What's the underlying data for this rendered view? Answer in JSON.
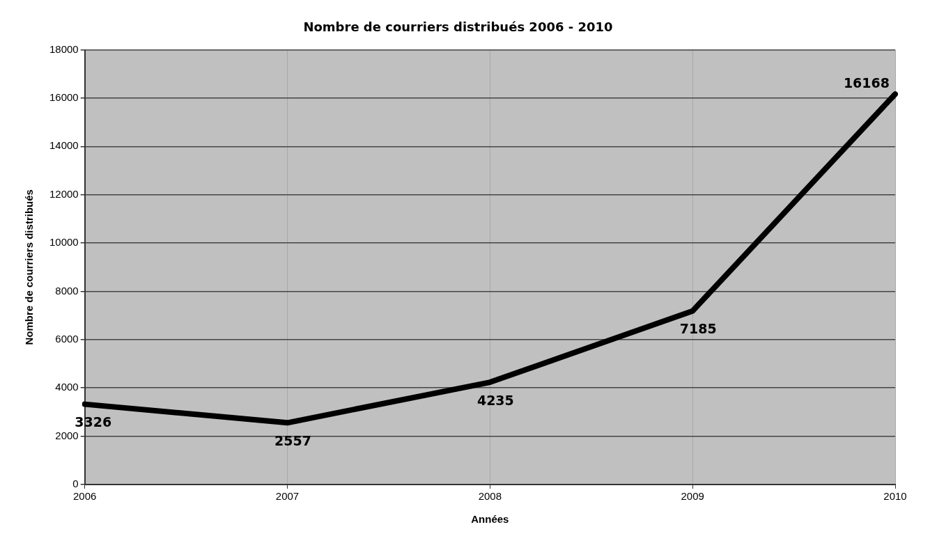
{
  "chart_data": {
    "type": "line",
    "title": "Nombre de courriers distribués 2006 - 2010",
    "xlabel": "Années",
    "ylabel": "Nombre de courriers distribués",
    "categories": [
      "2006",
      "2007",
      "2008",
      "2009",
      "2010"
    ],
    "series": [
      {
        "color": "#000000",
        "values": [
          3326,
          2557,
          4235,
          7185,
          16168
        ]
      }
    ],
    "ylim": [
      0,
      18000
    ],
    "yticks": [
      0,
      2000,
      4000,
      6000,
      8000,
      10000,
      12000,
      14000,
      16000,
      18000
    ],
    "grid": true,
    "legend": false,
    "marker": "none",
    "line_style": "solid",
    "data_labels": true
  }
}
